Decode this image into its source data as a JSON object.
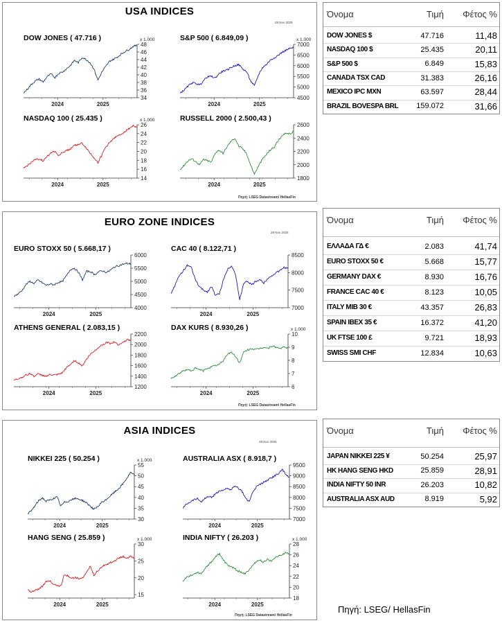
{
  "footer_source": "Πηγή: LSEG/ HellasFin",
  "panels": [
    {
      "title": "USA INDICES",
      "date": "28 Nov 2025",
      "source": "Πηγή: LSEG Datastream/ HellasFin",
      "charts": [
        {
          "title": "DOW JONES ( 47.716 )",
          "multiplier": "x 1.000",
          "color": "#1f3a6b",
          "ylim": [
            34,
            48
          ],
          "ticks": [
            34,
            36,
            38,
            40,
            42,
            44,
            46,
            48
          ],
          "xticks": [
            "2024",
            "2025"
          ],
          "values": [
            35.2,
            36.3,
            37.5,
            38.4,
            38.9,
            38.1,
            39.5,
            40.2,
            39.3,
            40.4,
            40.8,
            41.6,
            42.5,
            43.8,
            43.2,
            44.6,
            44.0,
            43.2,
            41.5,
            38.6,
            40.7,
            42.2,
            43.6,
            44.1,
            44.7,
            45.5,
            46.2,
            46.7,
            47.5,
            47.7
          ]
        },
        {
          "title": "S&P 500  ( 6.849,09 )",
          "multiplier": "x 1.000",
          "color": "#1a1ab8",
          "ylim": [
            4500,
            7000
          ],
          "ticks": [
            4500,
            5000,
            5500,
            6000,
            6500,
            7000
          ],
          "xticks": [
            "2024",
            "2025"
          ],
          "values": [
            4720,
            4850,
            5030,
            5200,
            5180,
            5090,
            5300,
            5480,
            5500,
            5420,
            5630,
            5750,
            5790,
            5920,
            6000,
            6050,
            5850,
            5720,
            5300,
            5050,
            5550,
            5900,
            6050,
            6250,
            6370,
            6480,
            6620,
            6720,
            6800,
            6849
          ]
        },
        {
          "title": "NASDAQ 100 ( 25.435 )",
          "multiplier": "x 1.000",
          "color": "#d32020",
          "ylim": [
            14,
            26
          ],
          "ticks": [
            14,
            16,
            18,
            20,
            22,
            24,
            26
          ],
          "xticks": [
            "2024",
            "2025"
          ],
          "values": [
            16.2,
            16.8,
            17.6,
            18.1,
            18.3,
            17.9,
            18.8,
            19.8,
            20.0,
            19.1,
            19.8,
            20.2,
            20.6,
            21.4,
            21.6,
            21.8,
            20.8,
            19.6,
            18.6,
            17.5,
            19.2,
            21.0,
            22.0,
            23.0,
            23.4,
            23.9,
            24.6,
            25.2,
            25.8,
            25.4
          ]
        },
        {
          "title": "RUSSELL 2000  ( 2.500,43 )",
          "multiplier": "",
          "color": "#2e8b3a",
          "ylim": [
            1800,
            2600
          ],
          "ticks": [
            1800,
            2000,
            2200,
            2400,
            2600
          ],
          "xticks": [
            "2024",
            "2025"
          ],
          "values": [
            1930,
            1990,
            2060,
            2090,
            2050,
            2000,
            2080,
            2060,
            2040,
            2180,
            2220,
            2170,
            2270,
            2350,
            2400,
            2280,
            2240,
            2170,
            2000,
            1860,
            1980,
            2080,
            2150,
            2220,
            2260,
            2360,
            2420,
            2480,
            2460,
            2500
          ]
        }
      ],
      "table": {
        "headers": {
          "name": "Όνομα",
          "price": "Τιμή",
          "ytd": "Φέτος %"
        },
        "rows": [
          {
            "name": "DOW JONES $",
            "price": "47.716",
            "ytd": "11,48"
          },
          {
            "name": "NASDAQ 100 $",
            "price": "25.435",
            "ytd": "20,11"
          },
          {
            "name": "S&P 500 $",
            "price": "6.849",
            "ytd": "15,83"
          },
          {
            "name": "CANADA TSX CAD",
            "price": "31.383",
            "ytd": "26,16"
          },
          {
            "name": "MEXICO IPC MXN",
            "price": "63.597",
            "ytd": "28,44"
          },
          {
            "name": "BRAZIL BOVESPA BRL",
            "price": "159.072",
            "ytd": "31,66"
          }
        ]
      }
    },
    {
      "title": "EURO ZONE INDICES",
      "date": "28 Nov 2025",
      "source": "Πηγή: LSEG Datastream/ HellasFin",
      "charts": [
        {
          "title": "EURO STOXX 50 ( 5.668,17 )",
          "multiplier": "",
          "color": "#1f3a6b",
          "ylim": [
            4000,
            6000
          ],
          "ticks": [
            4000,
            4500,
            5000,
            5500,
            6000
          ],
          "xticks": [
            "2024",
            "2025"
          ],
          "values": [
            4430,
            4520,
            4650,
            4880,
            5000,
            4920,
            5050,
            4950,
            4850,
            4900,
            4870,
            4960,
            4990,
            5200,
            5450,
            5500,
            5350,
            5050,
            5380,
            5370,
            5260,
            5360,
            5400,
            5340,
            5430,
            5550,
            5600,
            5650,
            5680,
            5668
          ]
        },
        {
          "title": "CAC 40  ( 8.122,71 )",
          "multiplier": "",
          "color": "#1a1ab8",
          "ylim": [
            7000,
            8500
          ],
          "ticks": [
            7000,
            7500,
            8000,
            8500
          ],
          "xticks": [
            "2024",
            "2025"
          ],
          "values": [
            7400,
            7650,
            7900,
            8050,
            8200,
            8150,
            7800,
            7600,
            7500,
            7450,
            7600,
            7350,
            7400,
            7800,
            8100,
            8200,
            7950,
            7200,
            7700,
            7750,
            7650,
            7750,
            7800,
            7700,
            7850,
            7900,
            8000,
            8050,
            8150,
            8123
          ]
        },
        {
          "title": "ATHENS GENERAL  ( 2.083,15 )",
          "multiplier": "",
          "color": "#d32020",
          "ylim": [
            1200,
            2200
          ],
          "ticks": [
            1200,
            1400,
            1600,
            1800,
            2000,
            2200
          ],
          "xticks": [
            "2024",
            "2025"
          ],
          "values": [
            1320,
            1350,
            1380,
            1420,
            1450,
            1400,
            1440,
            1420,
            1400,
            1430,
            1420,
            1430,
            1460,
            1560,
            1620,
            1700,
            1650,
            1600,
            1720,
            1820,
            1880,
            1950,
            2000,
            2040,
            2020,
            2050,
            2000,
            2040,
            2090,
            2083
          ]
        },
        {
          "title": "DAX KURS  ( 8.930,26 )",
          "multiplier": "x 1.000",
          "color": "#2e8b3a",
          "ylim": [
            6,
            10
          ],
          "ticks": [
            6,
            7,
            8,
            9,
            10
          ],
          "xticks": [
            "2024",
            "2025"
          ],
          "values": [
            6.6,
            6.8,
            7.0,
            7.2,
            7.3,
            7.2,
            7.4,
            7.3,
            7.2,
            7.4,
            7.5,
            7.6,
            7.7,
            8.0,
            8.5,
            8.6,
            8.3,
            7.8,
            8.6,
            8.8,
            8.9,
            8.8,
            8.9,
            9.0,
            8.9,
            9.1,
            9.0,
            8.9,
            9.0,
            8.93
          ]
        }
      ],
      "table": {
        "headers": {
          "name": "Όνομα",
          "price": "Τιμή",
          "ytd": "Φέτος %"
        },
        "rows": [
          {
            "name": "ΕΛΛΑΔΑ ΓΔ €",
            "price": "2.083",
            "ytd": "41,74"
          },
          {
            "name": "EURO STOXX 50 €",
            "price": "5.668",
            "ytd": "15,77"
          },
          {
            "name": "GERMANY DAX €",
            "price": "8.930",
            "ytd": "16,76"
          },
          {
            "name": "FRANCE CAC 40 €",
            "price": "8.123",
            "ytd": "10,05"
          },
          {
            "name": "ITALY MIB 30 €",
            "price": "43.357",
            "ytd": "26,83"
          },
          {
            "name": "SPAIN IBEX 35 €",
            "price": "16.372",
            "ytd": "41,20"
          },
          {
            "name": "UK FTSE 100 £",
            "price": "9.721",
            "ytd": "18,93"
          },
          {
            "name": "SWISS SMI CHF",
            "price": "12.834",
            "ytd": "10,63"
          }
        ]
      }
    },
    {
      "title": "ASIA INDICES",
      "date": "28 Nov 2025",
      "source": "Πηγή: LSEG Datastream/ HellasFin",
      "charts": [
        {
          "title": "NIKKEI 225 ( 50.254 )",
          "multiplier": "x 1.000",
          "color": "#1f3a6b",
          "ylim": [
            30,
            55
          ],
          "ticks": [
            30,
            35,
            40,
            45,
            50,
            55
          ],
          "xticks": [
            "2024",
            "2025"
          ],
          "values": [
            32.5,
            33.8,
            36.2,
            38.5,
            39.8,
            38.2,
            38.8,
            39.5,
            40.2,
            36.0,
            37.8,
            38.2,
            39.0,
            39.5,
            39.2,
            38.5,
            37.5,
            36.0,
            34.5,
            35.5,
            37.5,
            38.5,
            40.0,
            41.5,
            43.0,
            44.5,
            46.5,
            49.0,
            51.5,
            50.25
          ]
        },
        {
          "title": "AUSTRALIA ASX  ( 8.918,7 )",
          "multiplier": "",
          "color": "#1a1ab8",
          "ylim": [
            7000,
            9500
          ],
          "ticks": [
            7000,
            7500,
            8000,
            8500,
            9000,
            9500
          ],
          "xticks": [
            "2024",
            "2025"
          ],
          "values": [
            7500,
            7700,
            7800,
            7900,
            7950,
            7800,
            7950,
            8050,
            8000,
            8200,
            8300,
            8350,
            8400,
            8350,
            8500,
            8450,
            8300,
            8000,
            7800,
            8200,
            8500,
            8600,
            8700,
            8800,
            8900,
            9000,
            9100,
            9300,
            9050,
            8919
          ]
        },
        {
          "title": "HANG SENG  ( 25.859 )",
          "multiplier": "x 1.000",
          "color": "#d32020",
          "ylim": [
            14,
            30
          ],
          "ticks": [
            15,
            20,
            25,
            30
          ],
          "xticks": [
            "2024",
            "2025"
          ],
          "values": [
            16.5,
            15.8,
            16.2,
            16.8,
            17.5,
            18.8,
            19.2,
            18.0,
            17.8,
            17.5,
            21.0,
            20.5,
            19.8,
            20.2,
            19.6,
            20.1,
            21.5,
            23.5,
            20.8,
            22.0,
            23.0,
            23.8,
            24.2,
            24.8,
            25.2,
            26.0,
            26.3,
            25.8,
            26.5,
            25.86
          ]
        },
        {
          "title": "INDIA NIFTY  ( 26.203 )",
          "multiplier": "x 1.000",
          "color": "#2e8b3a",
          "ylim": [
            18,
            28
          ],
          "ticks": [
            18,
            20,
            22,
            24,
            26,
            28
          ],
          "xticks": [
            "2024",
            "2025"
          ],
          "values": [
            21.0,
            21.8,
            22.2,
            22.4,
            22.8,
            22.5,
            23.5,
            24.2,
            24.8,
            25.8,
            26.2,
            25.0,
            24.2,
            23.8,
            23.5,
            23.0,
            22.8,
            22.5,
            23.2,
            24.0,
            24.8,
            25.0,
            24.6,
            25.2,
            24.8,
            25.5,
            25.8,
            26.0,
            26.4,
            26.2
          ]
        }
      ],
      "table": {
        "headers": {
          "name": "Όνομα",
          "price": "Τιμή",
          "ytd": "Φέτος %"
        },
        "rows": [
          {
            "name": "JAPAN NIKKEI 225 ¥",
            "price": "50.254",
            "ytd": "25,97"
          },
          {
            "name": "HK HANG SENG HKD",
            "price": "25.859",
            "ytd": "28,91"
          },
          {
            "name": "INDIA NIFTY 50 INR",
            "price": "26.203",
            "ytd": "10,82"
          },
          {
            "name": "AUSTRALIA ASX AUD",
            "price": "8.919",
            "ytd": "5,92"
          }
        ]
      }
    }
  ],
  "chart_data": [
    {
      "type": "line",
      "title": "DOW JONES ( 47.716 )",
      "ylabel": "x 1.000",
      "x": [
        "2024",
        "2025"
      ],
      "ylim": [
        34,
        48
      ],
      "grid": false
    },
    {
      "type": "line",
      "title": "S&P 500  ( 6.849,09 )",
      "ylabel": "x 1.000",
      "x": [
        "2024",
        "2025"
      ],
      "ylim": [
        4500,
        7000
      ],
      "grid": false
    },
    {
      "type": "line",
      "title": "NASDAQ 100 ( 25.435 )",
      "ylabel": "x 1.000",
      "x": [
        "2024",
        "2025"
      ],
      "ylim": [
        14,
        26
      ],
      "grid": false
    },
    {
      "type": "line",
      "title": "RUSSELL 2000  ( 2.500,43 )",
      "x": [
        "2024",
        "2025"
      ],
      "ylim": [
        1800,
        2600
      ],
      "grid": false
    },
    {
      "type": "line",
      "title": "EURO STOXX 50 ( 5.668,17 )",
      "x": [
        "2024",
        "2025"
      ],
      "ylim": [
        4000,
        6000
      ],
      "grid": false
    },
    {
      "type": "line",
      "title": "CAC 40  ( 8.122,71 )",
      "x": [
        "2024",
        "2025"
      ],
      "ylim": [
        7000,
        8500
      ],
      "grid": false
    },
    {
      "type": "line",
      "title": "ATHENS GENERAL  ( 2.083,15 )",
      "x": [
        "2024",
        "2025"
      ],
      "ylim": [
        1200,
        2200
      ],
      "grid": false
    },
    {
      "type": "line",
      "title": "DAX KURS  ( 8.930,26 )",
      "ylabel": "x 1.000",
      "x": [
        "2024",
        "2025"
      ],
      "ylim": [
        6,
        10
      ],
      "grid": false
    },
    {
      "type": "line",
      "title": "NIKKEI 225 ( 50.254 )",
      "ylabel": "x 1.000",
      "x": [
        "2024",
        "2025"
      ],
      "ylim": [
        30,
        55
      ],
      "grid": false
    },
    {
      "type": "line",
      "title": "AUSTRALIA ASX  ( 8.918,7 )",
      "x": [
        "2024",
        "2025"
      ],
      "ylim": [
        7000,
        9500
      ],
      "grid": false
    },
    {
      "type": "line",
      "title": "HANG SENG  ( 25.859 )",
      "ylabel": "x 1.000",
      "x": [
        "2024",
        "2025"
      ],
      "ylim": [
        14,
        30
      ],
      "grid": false
    },
    {
      "type": "line",
      "title": "INDIA NIFTY  ( 26.203 )",
      "ylabel": "x 1.000",
      "x": [
        "2024",
        "2025"
      ],
      "ylim": [
        18,
        28
      ],
      "grid": false
    }
  ]
}
